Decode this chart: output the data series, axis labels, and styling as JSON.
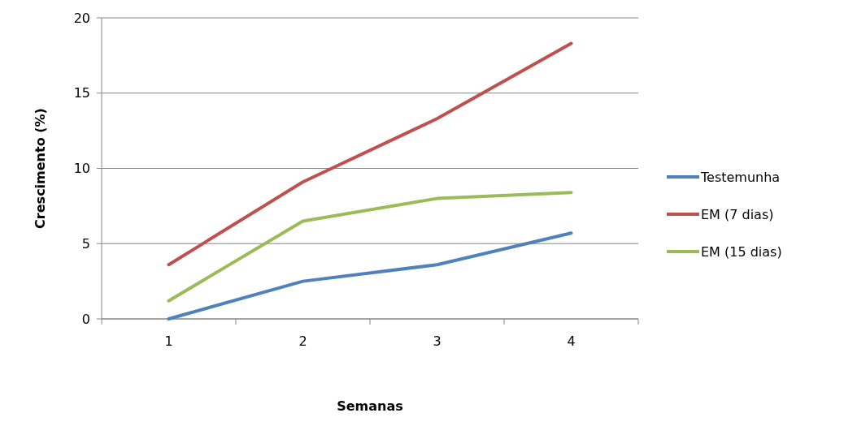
{
  "chart_data": {
    "type": "line",
    "xlabel": "Semanas",
    "ylabel": "Crescimento (%)",
    "categories": [
      "1",
      "2",
      "3",
      "4"
    ],
    "series": [
      {
        "name": "Testemunha",
        "color": "#4f81bd",
        "values": [
          0,
          2.5,
          3.6,
          5.7
        ]
      },
      {
        "name": "EM (7 dias)",
        "color": "#c0504d",
        "values": [
          3.6,
          9.1,
          13.3,
          18.3
        ]
      },
      {
        "name": "EM (15 dias)",
        "color": "#9bbb59",
        "values": [
          1.2,
          6.5,
          8.0,
          8.4
        ]
      }
    ],
    "ylim": [
      0,
      20
    ],
    "yticks": [
      0,
      5,
      10,
      15,
      20
    ],
    "grid": "y",
    "legend": "right",
    "marker": "none",
    "line_style": "solid"
  }
}
